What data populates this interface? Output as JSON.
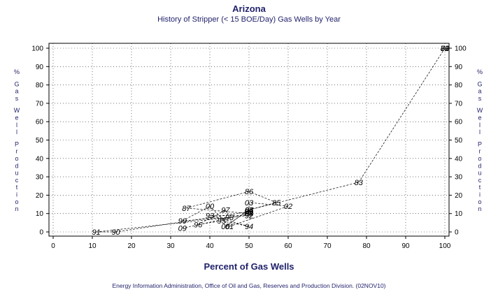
{
  "chart_data": {
    "type": "scatter",
    "title": "Arizona",
    "subtitle": "History of Stripper (< 15 BOE/Day) Gas Wells by Year",
    "xlabel": "Percent of Gas Wells",
    "ylabel": "% Gas Well Production",
    "xlim": [
      0,
      100
    ],
    "ylim": [
      0,
      100
    ],
    "xticks": [
      0,
      10,
      20,
      30,
      40,
      50,
      60,
      70,
      80,
      90,
      100
    ],
    "yticks": [
      0,
      10,
      20,
      30,
      40,
      50,
      60,
      70,
      80,
      90,
      100
    ],
    "grid": true,
    "footer": "Energy Information Administration, Office of Oil and Gas, Reserves and Production Division. (02NOV10)",
    "points": [
      {
        "label": "79",
        "x": 100,
        "y": 100
      },
      {
        "label": "80",
        "x": 100,
        "y": 100
      },
      {
        "label": "81",
        "x": 100,
        "y": 100
      },
      {
        "label": "82",
        "x": 100,
        "y": 100
      },
      {
        "label": "83",
        "x": 78,
        "y": 27
      },
      {
        "label": "84",
        "x": 50,
        "y": 12
      },
      {
        "label": "85",
        "x": 57,
        "y": 16
      },
      {
        "label": "86",
        "x": 50,
        "y": 22
      },
      {
        "label": "87",
        "x": 34,
        "y": 13
      },
      {
        "label": "88",
        "x": 50,
        "y": 10
      },
      {
        "label": "89",
        "x": 50,
        "y": 11
      },
      {
        "label": "90",
        "x": 16,
        "y": 0
      },
      {
        "label": "91",
        "x": 11,
        "y": 0
      },
      {
        "label": "92",
        "x": 50,
        "y": 9
      },
      {
        "label": "93",
        "x": 40,
        "y": 9
      },
      {
        "label": "94",
        "x": 50,
        "y": 3
      },
      {
        "label": "95",
        "x": 43,
        "y": 6
      },
      {
        "label": "96",
        "x": 37,
        "y": 4
      },
      {
        "label": "97",
        "x": 44,
        "y": 12
      },
      {
        "label": "98",
        "x": 45,
        "y": 8
      },
      {
        "label": "99",
        "x": 33,
        "y": 6
      },
      {
        "label": "00",
        "x": 40,
        "y": 14
      },
      {
        "label": "01",
        "x": 45,
        "y": 3
      },
      {
        "label": "02",
        "x": 60,
        "y": 14
      },
      {
        "label": "03",
        "x": 50,
        "y": 16
      },
      {
        "label": "04",
        "x": 50,
        "y": 10
      },
      {
        "label": "05",
        "x": 50,
        "y": 12
      },
      {
        "label": "06",
        "x": 44,
        "y": 3
      },
      {
        "label": "07",
        "x": 50,
        "y": 12
      },
      {
        "label": "08",
        "x": 50,
        "y": 10
      },
      {
        "label": "09",
        "x": 33,
        "y": 2
      }
    ]
  }
}
